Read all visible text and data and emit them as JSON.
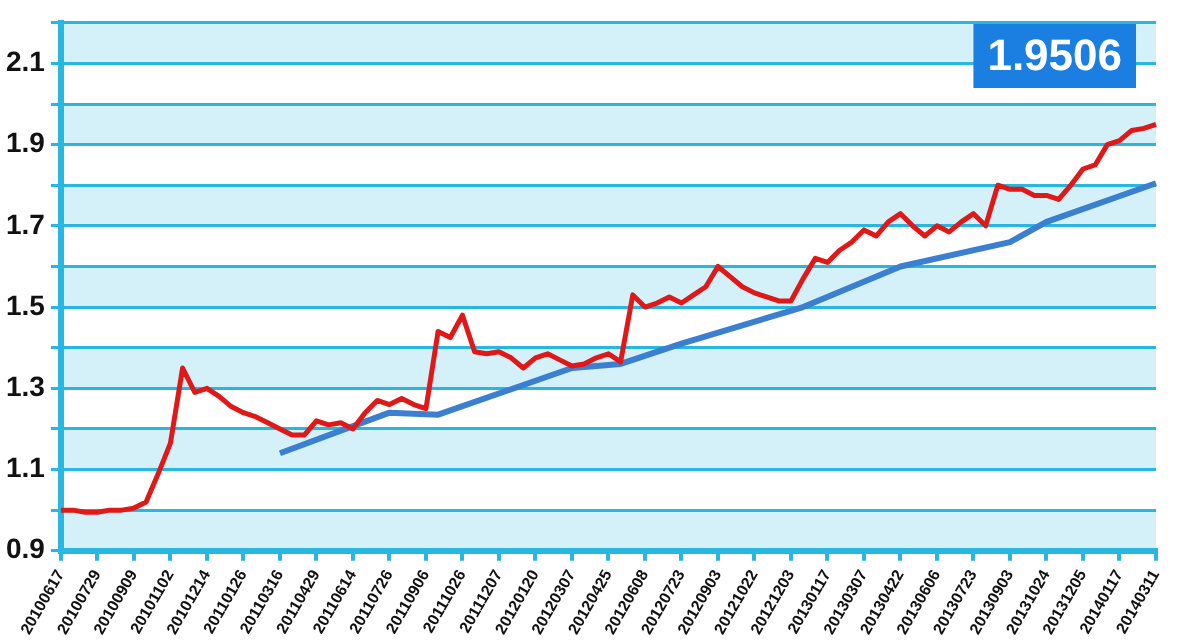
{
  "chart_data": {
    "type": "line",
    "categories": [
      "20100617",
      null,
      null,
      "20100729",
      null,
      null,
      "20100909",
      null,
      null,
      "20101102",
      null,
      null,
      "20101214",
      null,
      null,
      "20110126",
      null,
      null,
      "20110316",
      null,
      null,
      "20110429",
      null,
      null,
      "20110614",
      null,
      null,
      "20110726",
      null,
      null,
      "20110906",
      null,
      null,
      "20111026",
      null,
      null,
      "20111207",
      null,
      null,
      "20120120",
      null,
      null,
      "20120307",
      null,
      null,
      "20120425",
      null,
      null,
      "20120608",
      null,
      null,
      "20120723",
      null,
      null,
      "20120903",
      null,
      null,
      "20121022",
      null,
      null,
      "20121203",
      null,
      null,
      "20130117",
      null,
      null,
      "20130307",
      null,
      null,
      "20130422",
      null,
      null,
      "20130606",
      null,
      null,
      "20130723",
      null,
      null,
      "20130903",
      null,
      null,
      "20131024",
      null,
      null,
      "20131205",
      null,
      null,
      "20140117",
      null,
      null,
      "20140311"
    ],
    "series": [
      {
        "color": "#e01818",
        "values": [
          1.0,
          1.0,
          0.995,
          0.995,
          1.0,
          1.0,
          1.005,
          1.02,
          1.09,
          1.165,
          1.35,
          1.29,
          1.3,
          1.28,
          1.255,
          1.24,
          1.23,
          1.215,
          1.2,
          1.185,
          1.185,
          1.22,
          1.21,
          1.215,
          1.2,
          1.24,
          1.27,
          1.26,
          1.275,
          1.26,
          1.25,
          1.44,
          1.425,
          1.48,
          1.39,
          1.385,
          1.39,
          1.375,
          1.35,
          1.375,
          1.385,
          1.37,
          1.355,
          1.36,
          1.375,
          1.385,
          1.365,
          1.53,
          1.5,
          1.51,
          1.525,
          1.51,
          1.53,
          1.55,
          1.6,
          1.575,
          1.55,
          1.535,
          1.525,
          1.515,
          1.515,
          1.57,
          1.62,
          1.61,
          1.64,
          1.66,
          1.69,
          1.675,
          1.71,
          1.73,
          1.7,
          1.675,
          1.7,
          1.685,
          1.71,
          1.73,
          1.7,
          1.8,
          1.79,
          1.79,
          1.775,
          1.775,
          1.765,
          1.8,
          1.84,
          1.85,
          1.9,
          1.91,
          1.935,
          1.94,
          1.95
        ]
      },
      {
        "color": "#3a7fd0",
        "values": [
          null,
          null,
          null,
          null,
          null,
          null,
          null,
          null,
          null,
          null,
          null,
          null,
          null,
          null,
          null,
          null,
          null,
          null,
          1.14,
          null,
          null,
          null,
          null,
          null,
          null,
          null,
          null,
          1.24,
          null,
          null,
          null,
          1.235,
          null,
          null,
          null,
          null,
          null,
          null,
          null,
          null,
          null,
          null,
          1.35,
          null,
          null,
          null,
          1.36,
          null,
          null,
          null,
          null,
          1.41,
          null,
          null,
          null,
          null,
          null,
          null,
          null,
          null,
          null,
          1.5,
          null,
          null,
          null,
          null,
          null,
          null,
          null,
          1.6,
          null,
          null,
          null,
          null,
          null,
          null,
          null,
          null,
          1.66,
          null,
          null,
          1.71,
          null,
          null,
          null,
          null,
          null,
          null,
          null,
          null,
          1.805
        ]
      }
    ],
    "ylim": [
      0.9,
      2.2
    ],
    "yticks": [
      0.9,
      {
        "value": 1.0,
        "label": null
      },
      1.1,
      {
        "value": 1.2,
        "label": null
      },
      1.3,
      {
        "value": 1.4,
        "label": null
      },
      1.5,
      {
        "value": 1.6,
        "label": null
      },
      1.7,
      {
        "value": 1.8,
        "label": null
      },
      1.9,
      {
        "value": 2.0,
        "label": null
      },
      2.1,
      {
        "value": 2.2,
        "label": null
      }
    ],
    "grid": "y",
    "legend": false,
    "annotations": [
      "1.9506"
    ]
  }
}
